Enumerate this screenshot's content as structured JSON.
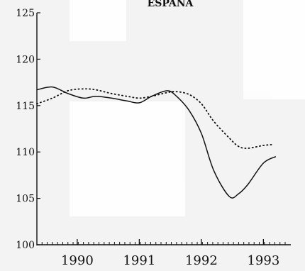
{
  "chart_data": {
    "type": "line",
    "title": "ESPAÑA",
    "xlabel": "",
    "ylabel": "",
    "xlim": [
      1989.35,
      1993.35
    ],
    "ylim": [
      100,
      125
    ],
    "y_ticks": [
      100,
      105,
      110,
      115,
      120,
      125
    ],
    "x_ticks": [
      {
        "label": "1990",
        "value": 1990
      },
      {
        "label": "1991",
        "value": 1991
      },
      {
        "label": "1992",
        "value": 1992
      },
      {
        "label": "1993",
        "value": 1993
      }
    ],
    "grid": false,
    "series": [
      {
        "style": "solid",
        "x": [
          1989.35,
          1989.6,
          1989.85,
          1990.1,
          1990.3,
          1990.55,
          1990.8,
          1991.0,
          1991.2,
          1991.45,
          1991.6,
          1991.8,
          1992.0,
          1992.2,
          1992.45,
          1992.6,
          1992.75,
          1993.0,
          1993.2
        ],
        "y": [
          116.7,
          117.0,
          116.3,
          115.8,
          116.0,
          115.8,
          115.5,
          115.3,
          116.0,
          116.6,
          116.0,
          114.5,
          112.0,
          108.0,
          105.2,
          105.5,
          106.5,
          108.8,
          109.5
        ]
      },
      {
        "style": "dotted",
        "x": [
          1989.35,
          1989.6,
          1989.85,
          1990.1,
          1990.3,
          1990.55,
          1990.8,
          1991.0,
          1991.2,
          1991.45,
          1991.6,
          1991.8,
          1992.0,
          1992.2,
          1992.45,
          1992.6,
          1992.75,
          1993.0,
          1993.15
        ],
        "y": [
          115.2,
          115.8,
          116.6,
          116.8,
          116.7,
          116.3,
          116.0,
          115.8,
          116.0,
          116.4,
          116.5,
          116.2,
          115.2,
          113.3,
          111.5,
          110.6,
          110.4,
          110.7,
          110.8
        ]
      }
    ]
  }
}
